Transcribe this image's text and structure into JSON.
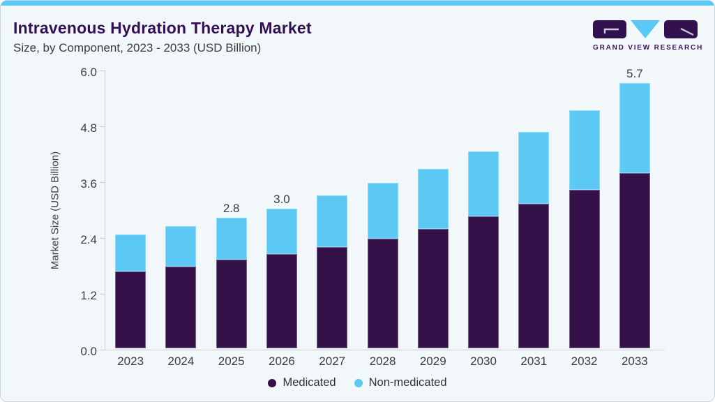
{
  "page": {
    "title": "Intravenous Hydration Therapy Market",
    "subtitle": "Size, by Component, 2023 - 2033 (USD Billion)"
  },
  "logo": {
    "brand_name": "GRAND VIEW RESEARCH"
  },
  "colors": {
    "medicated": "#341249",
    "non_medicated": "#5BC9F4",
    "accent_strip": "#5AC8F5",
    "background": "#F2F7FA",
    "title_text": "#331055",
    "axis_line": "#C9CED6",
    "axis_text": "#3A3E46"
  },
  "chart_data": {
    "type": "bar",
    "stacked": true,
    "title": "Intravenous Hydration Therapy Market Size, by Component, 2023 - 2033 (USD Billion)",
    "xlabel": "",
    "ylabel": "Market Size (USD Billion)",
    "ylim": [
      0,
      6.0
    ],
    "yticks": [
      0.0,
      1.2,
      2.4,
      3.6,
      4.8,
      6.0
    ],
    "grid": false,
    "legend_position": "bottom",
    "categories": [
      "2023",
      "2024",
      "2025",
      "2026",
      "2027",
      "2028",
      "2029",
      "2030",
      "2031",
      "2032",
      "2033"
    ],
    "series": [
      {
        "name": "Medicated",
        "color": "#341249",
        "values": [
          1.65,
          1.76,
          1.9,
          2.02,
          2.18,
          2.36,
          2.57,
          2.83,
          3.1,
          3.41,
          3.76
        ]
      },
      {
        "name": "Non-medicated",
        "color": "#5BC9F4",
        "values": [
          0.8,
          0.87,
          0.9,
          0.98,
          1.1,
          1.2,
          1.29,
          1.4,
          1.55,
          1.7,
          1.94
        ]
      }
    ],
    "totals": [
      2.45,
      2.63,
      2.8,
      3.0,
      3.28,
      3.56,
      3.86,
      4.23,
      4.65,
      5.11,
      5.7
    ],
    "total_labels": [
      "",
      "",
      "2.8",
      "3.0",
      "",
      "",
      "",
      "",
      "",
      "",
      "5.7"
    ]
  }
}
